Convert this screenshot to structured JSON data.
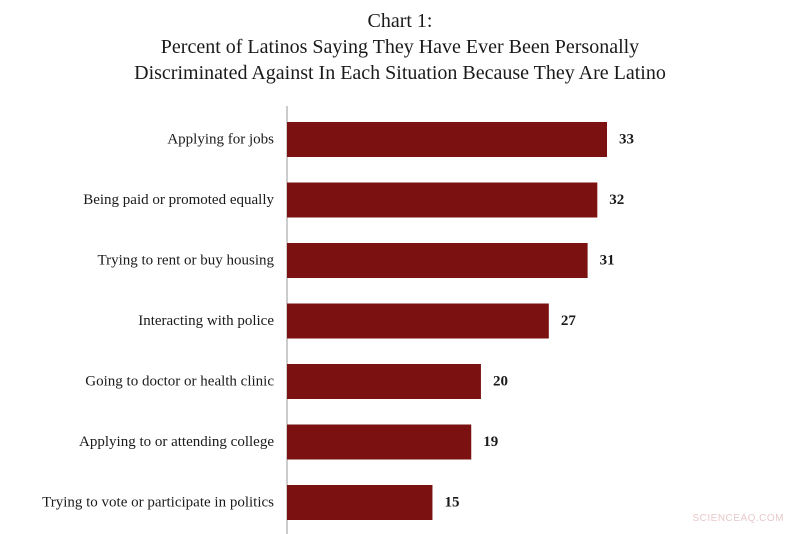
{
  "chart_data": {
    "type": "bar",
    "orientation": "horizontal",
    "title": [
      "Chart 1:",
      "Percent of Latinos Saying They Have Ever Been Personally",
      "Discriminated Against In Each Situation Because They Are Latino"
    ],
    "categories": [
      "Applying for jobs",
      "Being paid or promoted equally",
      "Trying to rent or buy housing",
      "Interacting with police",
      "Going to doctor or health clinic",
      "Applying to or attending college",
      "Trying to vote or participate in politics"
    ],
    "values": [
      33,
      32,
      31,
      27,
      20,
      19,
      15
    ],
    "data_labels": [
      "33",
      "32",
      "31",
      "27",
      "20",
      "19",
      "15"
    ],
    "xlim": [
      0,
      33
    ],
    "bar_color": "#7b1111",
    "grid": false,
    "legend": "none"
  },
  "watermark": "SCIENCEAQ.COM"
}
